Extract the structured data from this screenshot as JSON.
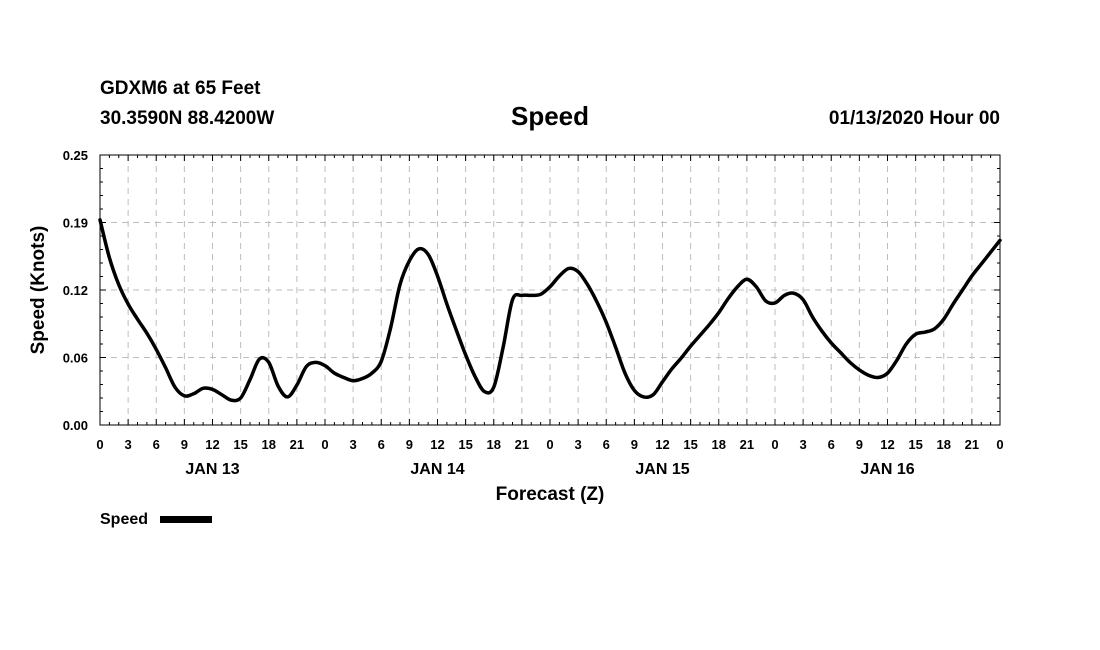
{
  "header": {
    "station": "GDXM6 at 65 Feet",
    "coords": "30.3590N 88.4200W",
    "datetime": "01/13/2020 Hour 00"
  },
  "chart_data": {
    "type": "line",
    "title": "Speed",
    "xlabel": "Forecast (Z)",
    "ylabel": "Speed (Knots)",
    "ylim": [
      0,
      0.25
    ],
    "xlim_hours": [
      0,
      96
    ],
    "grid": true,
    "y_ticks": [
      "0.00",
      "0.06",
      "0.12",
      "0.19",
      "0.25"
    ],
    "y_tick_values": [
      0,
      0.0625,
      0.125,
      0.1875,
      0.25
    ],
    "x_ticks": [
      "0",
      "3",
      "6",
      "9",
      "12",
      "15",
      "18",
      "21",
      "0",
      "3",
      "6",
      "9",
      "12",
      "15",
      "18",
      "21",
      "0",
      "3",
      "6",
      "9",
      "12",
      "15",
      "18",
      "21",
      "0",
      "3",
      "6",
      "9",
      "12",
      "15",
      "18",
      "21",
      "0"
    ],
    "day_labels": [
      {
        "label": "JAN 13",
        "hour": 12
      },
      {
        "label": "JAN 14",
        "hour": 36
      },
      {
        "label": "JAN 15",
        "hour": 60
      },
      {
        "label": "JAN 16",
        "hour": 84
      }
    ],
    "legend": [
      {
        "name": "Speed",
        "color": "#000000"
      }
    ],
    "series": [
      {
        "name": "Speed",
        "color": "#000000",
        "x": [
          0,
          1,
          2,
          3,
          4,
          5,
          6,
          7,
          8,
          9,
          10,
          11,
          12,
          13,
          14,
          15,
          16,
          17,
          18,
          19,
          20,
          21,
          22,
          23,
          24,
          25,
          26,
          27,
          28,
          29,
          30,
          31,
          32,
          33,
          34,
          35,
          36,
          37,
          38,
          39,
          40,
          41,
          42,
          43,
          44,
          45,
          46,
          47,
          48,
          49,
          50,
          51,
          52,
          53,
          54,
          55,
          56,
          57,
          58,
          59,
          60,
          61,
          62,
          63,
          64,
          65,
          66,
          67,
          68,
          69,
          70,
          71,
          72,
          73,
          74,
          75,
          76,
          77,
          78,
          79,
          80,
          81,
          82,
          83,
          84,
          85,
          86,
          87,
          88,
          89,
          90,
          91,
          92,
          93,
          94,
          95,
          96
        ],
        "values": [
          0.19,
          0.155,
          0.13,
          0.112,
          0.098,
          0.085,
          0.07,
          0.053,
          0.035,
          0.027,
          0.029,
          0.034,
          0.033,
          0.028,
          0.023,
          0.025,
          0.042,
          0.061,
          0.058,
          0.036,
          0.026,
          0.037,
          0.054,
          0.058,
          0.055,
          0.048,
          0.044,
          0.041,
          0.043,
          0.048,
          0.059,
          0.09,
          0.13,
          0.152,
          0.163,
          0.158,
          0.138,
          0.112,
          0.088,
          0.065,
          0.045,
          0.031,
          0.035,
          0.072,
          0.116,
          0.12,
          0.12,
          0.121,
          0.128,
          0.138,
          0.145,
          0.142,
          0.13,
          0.114,
          0.095,
          0.072,
          0.048,
          0.032,
          0.026,
          0.028,
          0.04,
          0.052,
          0.062,
          0.073,
          0.083,
          0.093,
          0.104,
          0.117,
          0.128,
          0.135,
          0.128,
          0.115,
          0.113,
          0.12,
          0.122,
          0.116,
          0.1,
          0.087,
          0.076,
          0.067,
          0.058,
          0.051,
          0.046,
          0.044,
          0.048,
          0.06,
          0.075,
          0.084,
          0.086,
          0.089,
          0.098,
          0.112,
          0.125,
          0.138,
          0.149,
          0.16,
          0.171
        ]
      }
    ]
  }
}
